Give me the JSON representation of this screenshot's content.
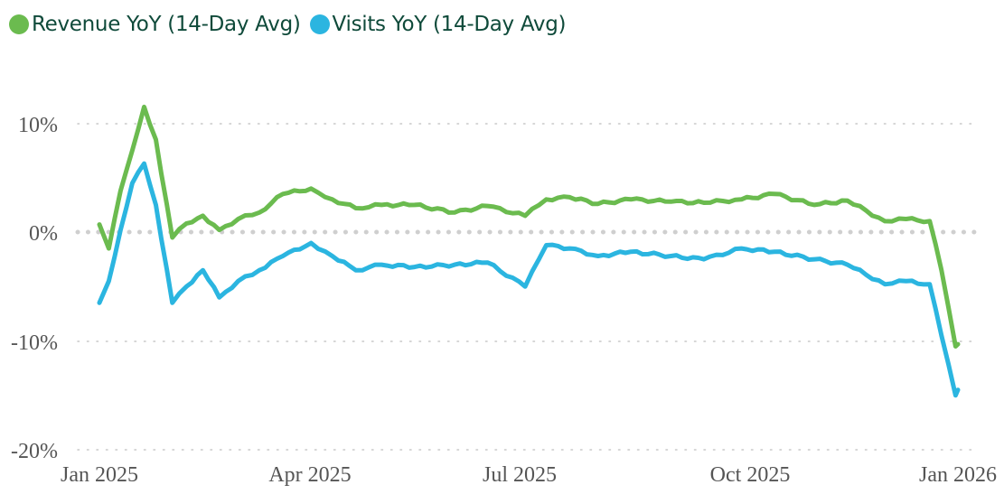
{
  "legend": [
    {
      "label": "Revenue YoY (14-Day Avg)",
      "color": "#6bbb4f"
    },
    {
      "label": "Visits YoY (14-Day Avg)",
      "color": "#2bb5e0"
    }
  ],
  "axes": {
    "y_ticks": [
      "10%",
      "0%",
      "-10%",
      "-20%"
    ],
    "x_ticks": [
      "Jan 2025",
      "Apr 2025",
      "Jul 2025",
      "Oct 2025",
      "Jan 2026"
    ]
  },
  "chart_data": {
    "type": "line",
    "title": "",
    "xlabel": "",
    "ylabel": "",
    "ylim": [
      -20,
      12
    ],
    "grid": "horizontal dotted",
    "legend_position": "top-left",
    "x_ticks": [
      "Jan 2025",
      "Apr 2025",
      "Jul 2025",
      "Oct 2025",
      "Jan 2026"
    ],
    "y_ticks": [
      10,
      0,
      -10,
      -20
    ],
    "x": [
      "2025-01-01",
      "2025-01-05",
      "2025-01-10",
      "2025-01-15",
      "2025-01-20",
      "2025-01-25",
      "2025-02-01",
      "2025-02-07",
      "2025-02-14",
      "2025-02-21",
      "2025-03-01",
      "2025-03-10",
      "2025-03-20",
      "2025-04-01",
      "2025-04-10",
      "2025-04-20",
      "2025-05-01",
      "2025-05-15",
      "2025-06-01",
      "2025-06-15",
      "2025-07-01",
      "2025-07-10",
      "2025-07-20",
      "2025-08-01",
      "2025-08-15",
      "2025-09-01",
      "2025-09-15",
      "2025-10-01",
      "2025-10-15",
      "2025-11-01",
      "2025-11-15",
      "2025-12-01",
      "2025-12-10",
      "2025-12-20",
      "2025-12-25",
      "2025-12-31",
      "2026-01-01"
    ],
    "series": [
      {
        "name": "Revenue YoY (14-Day Avg)",
        "color": "#6bbb4f",
        "values": [
          0.7,
          -1.5,
          3.8,
          7.5,
          11.5,
          8.5,
          -0.5,
          0.8,
          1.5,
          0.2,
          1.2,
          1.8,
          3.5,
          4.0,
          3.0,
          2.2,
          2.5,
          2.5,
          1.8,
          2.4,
          1.5,
          3.0,
          3.2,
          2.6,
          3.0,
          2.8,
          2.7,
          3.0,
          3.5,
          2.5,
          2.9,
          1.0,
          1.2,
          1.0,
          -3.5,
          -10.5,
          -10.3
        ]
      },
      {
        "name": "Visits YoY (14-Day Avg)",
        "color": "#2bb5e0",
        "values": [
          -6.5,
          -4.5,
          0.2,
          4.5,
          6.3,
          2.5,
          -6.5,
          -5.0,
          -3.5,
          -6.0,
          -4.5,
          -3.5,
          -2.2,
          -1.0,
          -2.2,
          -3.5,
          -3.0,
          -3.2,
          -3.0,
          -2.8,
          -5.0,
          -1.2,
          -1.5,
          -2.2,
          -1.8,
          -2.2,
          -2.5,
          -1.5,
          -1.8,
          -2.5,
          -3.0,
          -4.8,
          -4.5,
          -4.8,
          -9.5,
          -15.0,
          -14.5
        ]
      }
    ]
  }
}
